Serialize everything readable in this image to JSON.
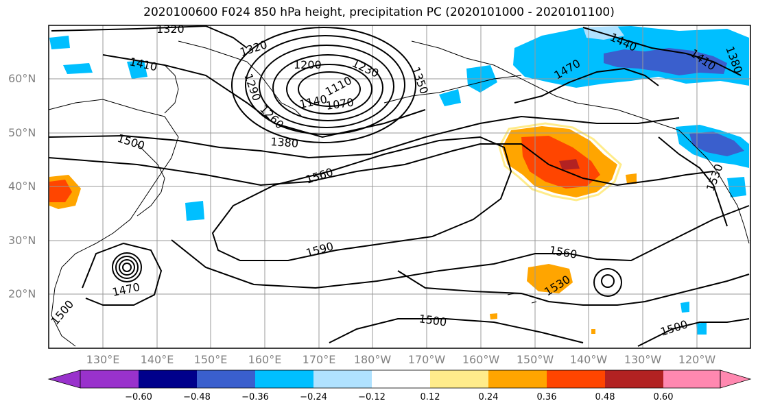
{
  "title": "2020100600 F024 850 hPa height, precipitation PC (2020101000 - 2020101100)",
  "latitude_labels": [
    "60°N",
    "50°N",
    "40°N",
    "30°N",
    "20°N"
  ],
  "longitude_labels": [
    "130°E",
    "140°E",
    "150°E",
    "160°E",
    "170°E",
    "180°W",
    "170°W",
    "160°W",
    "150°W",
    "140°W",
    "130°W",
    "120°W"
  ],
  "contour_labels": [
    "1320",
    "1320",
    "1410",
    "1200",
    "1230",
    "1350",
    "1290",
    "1260",
    "1140",
    "1110",
    "1070",
    "1500",
    "1380",
    "1440",
    "1410",
    "1380",
    "1470",
    "1560",
    "1590",
    "1560",
    "1530",
    "1530",
    "1500",
    "1470",
    "1500",
    "1500"
  ],
  "colorbar": {
    "ticks": [
      "−0.60",
      "−0.48",
      "−0.36",
      "−0.24",
      "−0.12",
      "0.12",
      "0.24",
      "0.36",
      "0.48",
      "0.60"
    ],
    "colors": [
      "#9932cc",
      "#00008b",
      "#3a5fcd",
      "#00bfff",
      "#b0e2ff",
      "#ffffff",
      "#ffec8b",
      "#ffa500",
      "#ff4500",
      "#b22222",
      "#ff88b0"
    ]
  }
}
